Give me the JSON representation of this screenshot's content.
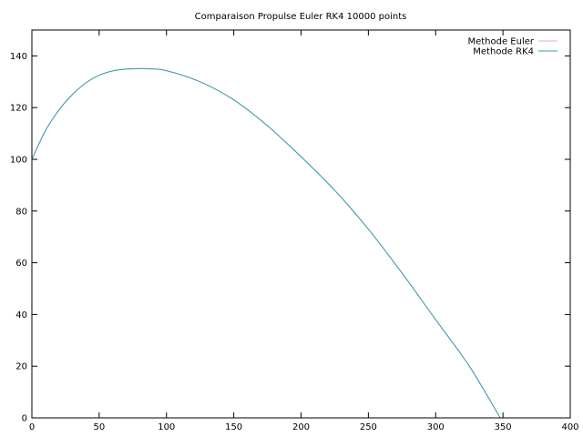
{
  "chart_data": {
    "type": "line",
    "title": "Comparaison Propulse Euler RK4 10000 points",
    "xlabel": "",
    "ylabel": "",
    "xlim": [
      0,
      400
    ],
    "ylim": [
      0,
      150
    ],
    "xticks": [
      0,
      50,
      100,
      150,
      200,
      250,
      300,
      350,
      400
    ],
    "yticks": [
      0,
      20,
      40,
      60,
      80,
      100,
      120,
      140
    ],
    "grid": false,
    "legend_position": "top-right",
    "series": [
      {
        "name": "Methode Euler",
        "color": "#e8a6d8",
        "x": [
          0,
          10,
          20,
          30,
          40,
          50,
          60,
          70,
          80,
          87,
          100,
          125,
          150,
          175,
          200,
          225,
          250,
          275,
          300,
          325,
          348
        ],
        "y": [
          100,
          111,
          119,
          125,
          129.5,
          132.5,
          134.2,
          134.9,
          135.1,
          135,
          134.3,
          130,
          123,
          113,
          101,
          88,
          73,
          56,
          38,
          20,
          0
        ]
      },
      {
        "name": "Methode RK4",
        "color": "#3a9ca8",
        "x": [
          0,
          10,
          20,
          30,
          40,
          50,
          60,
          70,
          80,
          87,
          100,
          125,
          150,
          175,
          200,
          225,
          250,
          275,
          300,
          325,
          348
        ],
        "y": [
          100,
          111,
          119,
          125,
          129.5,
          132.5,
          134.2,
          134.9,
          135.1,
          135,
          134.3,
          130,
          123,
          113,
          101,
          88,
          73,
          56,
          38,
          20,
          0
        ]
      }
    ]
  }
}
